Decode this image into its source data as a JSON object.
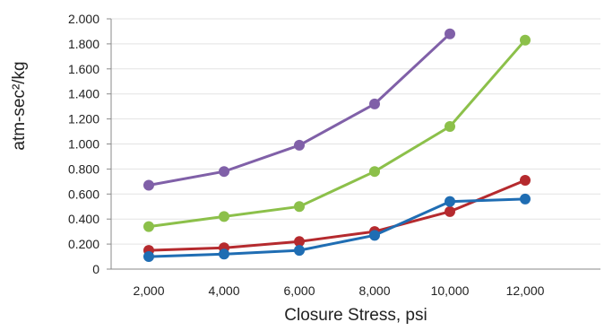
{
  "chart_data": {
    "type": "line",
    "title": "",
    "xlabel": "Closure Stress, psi",
    "ylabel": "atm-sec²/kg",
    "x": [
      2000,
      4000,
      6000,
      8000,
      10000,
      12000
    ],
    "x_tick_labels": [
      "2,000",
      "4,000",
      "6,000",
      "8,000",
      "10,000",
      "12,000"
    ],
    "xlim": [
      1000,
      14000
    ],
    "ylim": [
      0,
      2.0
    ],
    "y_ticks": [
      0,
      0.2,
      0.4,
      0.6,
      0.8,
      1.0,
      1.2,
      1.4,
      1.6,
      1.8,
      2.0
    ],
    "y_tick_labels": [
      "0",
      "0.200",
      "0.400",
      "0.600",
      "0.800",
      "1.000",
      "1.200",
      "1.400",
      "1.600",
      "1.800",
      "2.000"
    ],
    "grid": "horizontal",
    "legend": "none",
    "series": [
      {
        "color": "#8060a8",
        "points": [
          [
            2000,
            0.67
          ],
          [
            4000,
            0.78
          ],
          [
            6000,
            0.99
          ],
          [
            8000,
            1.32
          ],
          [
            10000,
            1.88
          ]
        ]
      },
      {
        "color": "#8cc04a",
        "points": [
          [
            2000,
            0.34
          ],
          [
            4000,
            0.42
          ],
          [
            6000,
            0.5
          ],
          [
            8000,
            0.78
          ],
          [
            10000,
            1.14
          ],
          [
            12000,
            1.83
          ]
        ]
      },
      {
        "color": "#b52a2e",
        "points": [
          [
            2000,
            0.15
          ],
          [
            4000,
            0.17
          ],
          [
            6000,
            0.22
          ],
          [
            8000,
            0.3
          ],
          [
            10000,
            0.46
          ],
          [
            12000,
            0.71
          ]
        ]
      },
      {
        "color": "#1f6db3",
        "points": [
          [
            2000,
            0.1
          ],
          [
            4000,
            0.12
          ],
          [
            6000,
            0.15
          ],
          [
            8000,
            0.27
          ],
          [
            10000,
            0.54
          ],
          [
            12000,
            0.56
          ]
        ]
      }
    ]
  }
}
